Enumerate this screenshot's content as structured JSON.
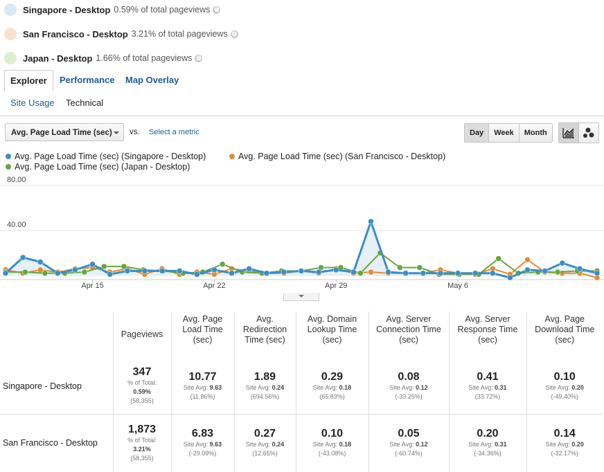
{
  "segments": [
    {
      "name": "Singapore - Desktop",
      "pct": "0.59% of total pageviews",
      "color": "#d8e8f6"
    },
    {
      "name": "San Francisco - Desktop",
      "pct": "3.21% of total pageviews",
      "color": "#fbe0cc"
    },
    {
      "name": "Japan - Desktop",
      "pct": "1.66% of total pageviews",
      "color": "#dceece"
    }
  ],
  "segment_remove_icon": "⊗",
  "tabs": [
    "Explorer",
    "Performance",
    "Map Overlay"
  ],
  "subtabs": [
    "Site Usage",
    "Technical"
  ],
  "toolbar": {
    "metric": "Avg. Page Load Time (sec)",
    "vs": "vs.",
    "select_metric": "Select a metric",
    "granularity": [
      "Day",
      "Week",
      "Month"
    ],
    "granularity_selected": "Day",
    "chart_type_icons": [
      "line-chart-icon",
      "motion-chart-icon"
    ]
  },
  "legend": [
    "Avg. Page Load Time (sec) (Singapore - Desktop)",
    "Avg. Page Load Time (sec) (San Francisco - Desktop)",
    "Avg. Page Load Time (sec) (Japan - Desktop)"
  ],
  "chart_data": {
    "type": "line",
    "y_ticks": [
      "80.00",
      "40.00"
    ],
    "x_ticks": [
      "Apr 15",
      "Apr 22",
      "Apr 29",
      "May 6"
    ],
    "ylim": [
      0,
      80
    ],
    "grid": true,
    "series": [
      {
        "name": "Avg. Page Load Time (sec) (Singapore - Desktop)",
        "color": "#3a8ec8",
        "values": [
          2,
          16,
          12,
          2,
          5,
          10,
          1,
          4,
          4,
          4,
          4,
          1,
          5,
          2,
          6,
          2,
          3,
          4,
          3,
          5,
          3,
          48,
          3,
          2,
          2,
          2,
          2,
          2,
          2,
          -2,
          5,
          4,
          11,
          6,
          2
        ]
      },
      {
        "name": "Avg. Page Load Time (sec) (San Francisco - Desktop)",
        "color": "#e58a32",
        "values": [
          5,
          2,
          5,
          3,
          6,
          7,
          3,
          6,
          1,
          6,
          1,
          3,
          1,
          6,
          4,
          2,
          2,
          4,
          2,
          6,
          2,
          3,
          2,
          2,
          2,
          5,
          2,
          1,
          6,
          1,
          14,
          3,
          2,
          2,
          -2
        ]
      },
      {
        "name": "Avg. Page Load Time (sec) (Japan - Desktop)",
        "color": "#65a83c",
        "values": [
          3,
          3,
          2,
          2,
          3,
          8,
          8,
          5,
          4,
          2,
          3,
          10,
          3,
          2,
          4,
          4,
          7,
          7,
          2,
          20,
          7,
          7,
          1,
          1,
          1,
          15,
          2,
          3,
          3,
          4,
          4
        ]
      }
    ]
  },
  "table": {
    "headers": [
      "Pageviews",
      "Avg. Page Load Time (sec)",
      "Avg. Redirection Time (sec)",
      "Avg. Domain Lookup Time (sec)",
      "Avg. Server Connection Time (sec)",
      "Avg. Server Response Time (sec)",
      "Avg. Page Download Time (sec)"
    ],
    "rows": [
      {
        "label": "Singapore - Desktop",
        "pageviews": {
          "value": "347",
          "line1": "% of Total:",
          "line2": "0.59%",
          "line3": "(58,355)"
        },
        "cells": [
          {
            "value": "10.77",
            "avg_label": "Site Avg:",
            "avg": "9.63",
            "delta": "(11.86%)"
          },
          {
            "value": "1.89",
            "avg_label": "Site Avg:",
            "avg": "0.24",
            "delta": "(694.56%)"
          },
          {
            "value": "0.29",
            "avg_label": "Site Avg:",
            "avg": "0.18",
            "delta": "(65.83%)"
          },
          {
            "value": "0.08",
            "avg_label": "Site Avg:",
            "avg": "0.12",
            "delta": "(-33.25%)"
          },
          {
            "value": "0.41",
            "avg_label": "Site Avg:",
            "avg": "0.31",
            "delta": "(33.72%)"
          },
          {
            "value": "0.10",
            "avg_label": "Site Avg:",
            "avg": "0.20",
            "delta": "(-49.40%)"
          }
        ]
      },
      {
        "label": "San Francisco - Desktop",
        "pageviews": {
          "value": "1,873",
          "line1": "% of Total:",
          "line2": "3.21%",
          "line3": "(58,355)"
        },
        "cells": [
          {
            "value": "6.83",
            "avg_label": "Site Avg:",
            "avg": "9.63",
            "delta": "(-29.09%)"
          },
          {
            "value": "0.27",
            "avg_label": "Site Avg:",
            "avg": "0.24",
            "delta": "(12.65%)"
          },
          {
            "value": "0.10",
            "avg_label": "Site Avg:",
            "avg": "0.18",
            "delta": "(-43.08%)"
          },
          {
            "value": "0.05",
            "avg_label": "Site Avg:",
            "avg": "0.12",
            "delta": "(-60.74%)"
          },
          {
            "value": "0.20",
            "avg_label": "Site Avg:",
            "avg": "0.31",
            "delta": "(-34.36%)"
          },
          {
            "value": "0.14",
            "avg_label": "Site Avg:",
            "avg": "0.20",
            "delta": "(-32.17%)"
          }
        ]
      }
    ]
  }
}
